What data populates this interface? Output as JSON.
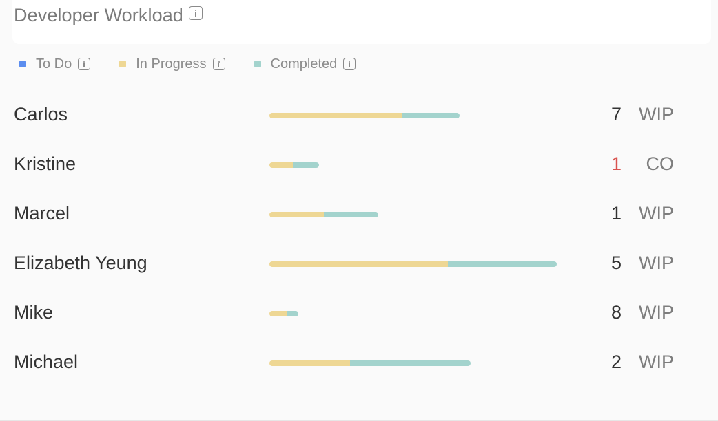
{
  "widget": {
    "title": "Developer Workload",
    "title_icon": "info-icon"
  },
  "legend": [
    {
      "label": "To Do",
      "color": "#5b8def",
      "icon": "info-icon"
    },
    {
      "label": "In Progress",
      "color": "#eed794",
      "icon": "info-icon"
    },
    {
      "label": "Completed",
      "color": "#a3d3cd",
      "icon": "info-icon"
    }
  ],
  "scale_max": 1,
  "developers": [
    {
      "name": "Carlos",
      "todo": 0,
      "in_progress": 0.465,
      "completed": 0.2,
      "count": "7",
      "count_alert": false,
      "status": "WIP"
    },
    {
      "name": "Kristine",
      "todo": 0,
      "in_progress": 0.083,
      "completed": 0.09,
      "count": "1",
      "count_alert": true,
      "status": "CO"
    },
    {
      "name": "Marcel",
      "todo": 0,
      "in_progress": 0.19,
      "completed": 0.19,
      "count": "1",
      "count_alert": false,
      "status": "WIP"
    },
    {
      "name": "Elizabeth Yeung",
      "todo": 0,
      "in_progress": 0.624,
      "completed": 0.38,
      "count": "5",
      "count_alert": false,
      "status": "WIP"
    },
    {
      "name": "Mike",
      "todo": 0,
      "in_progress": 0.062,
      "completed": 0.04,
      "count": "8",
      "count_alert": false,
      "status": "WIP"
    },
    {
      "name": "Michael",
      "todo": 0,
      "in_progress": 0.283,
      "completed": 0.42,
      "count": "2",
      "count_alert": false,
      "status": "WIP"
    }
  ]
}
